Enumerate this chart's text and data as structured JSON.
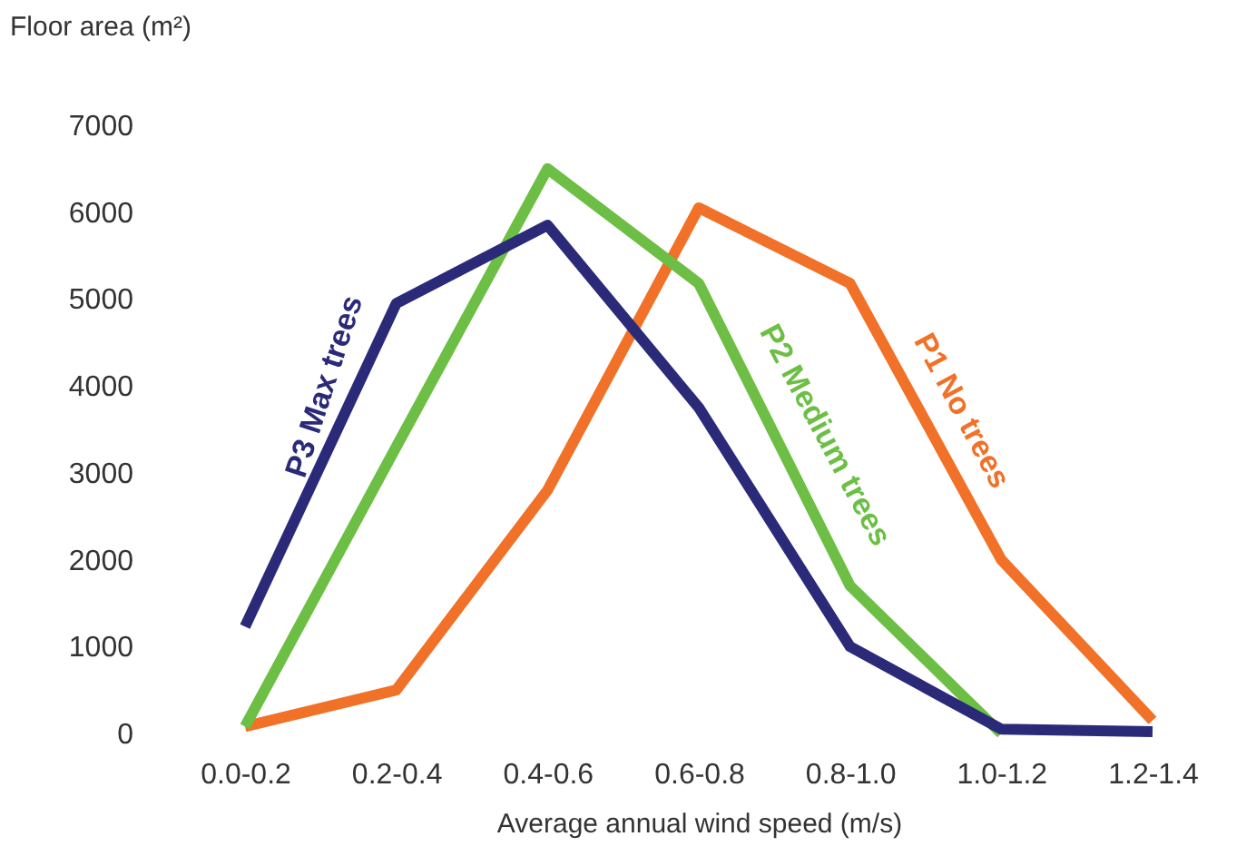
{
  "chart_data": {
    "type": "line",
    "xlabel": "Average annual wind speed (m/s)",
    "ylabel": "Floor area (m²)",
    "categories": [
      "0.0-0.2",
      "0.2-0.4",
      "0.4-0.6",
      "0.6-0.8",
      "0.8-1.0",
      "1.0-1.2",
      "1.2-1.4"
    ],
    "ylim": [
      0,
      7000
    ],
    "yticks": [
      0,
      1000,
      2000,
      3000,
      4000,
      5000,
      6000,
      7000
    ],
    "legend": false,
    "marker": "none",
    "series": [
      {
        "name": "P1 No trees",
        "color": "#f07127",
        "values": [
          80,
          500,
          2800,
          6050,
          5180,
          2000,
          150
        ]
      },
      {
        "name": "P2 Medium trees",
        "color": "#6cbf44",
        "values": [
          80,
          3300,
          6500,
          5180,
          1700,
          0,
          null
        ]
      },
      {
        "name": "P3 Max trees",
        "color": "#2b2a78",
        "values": [
          1230,
          4950,
          5850,
          3750,
          1000,
          50,
          20
        ]
      }
    ]
  }
}
